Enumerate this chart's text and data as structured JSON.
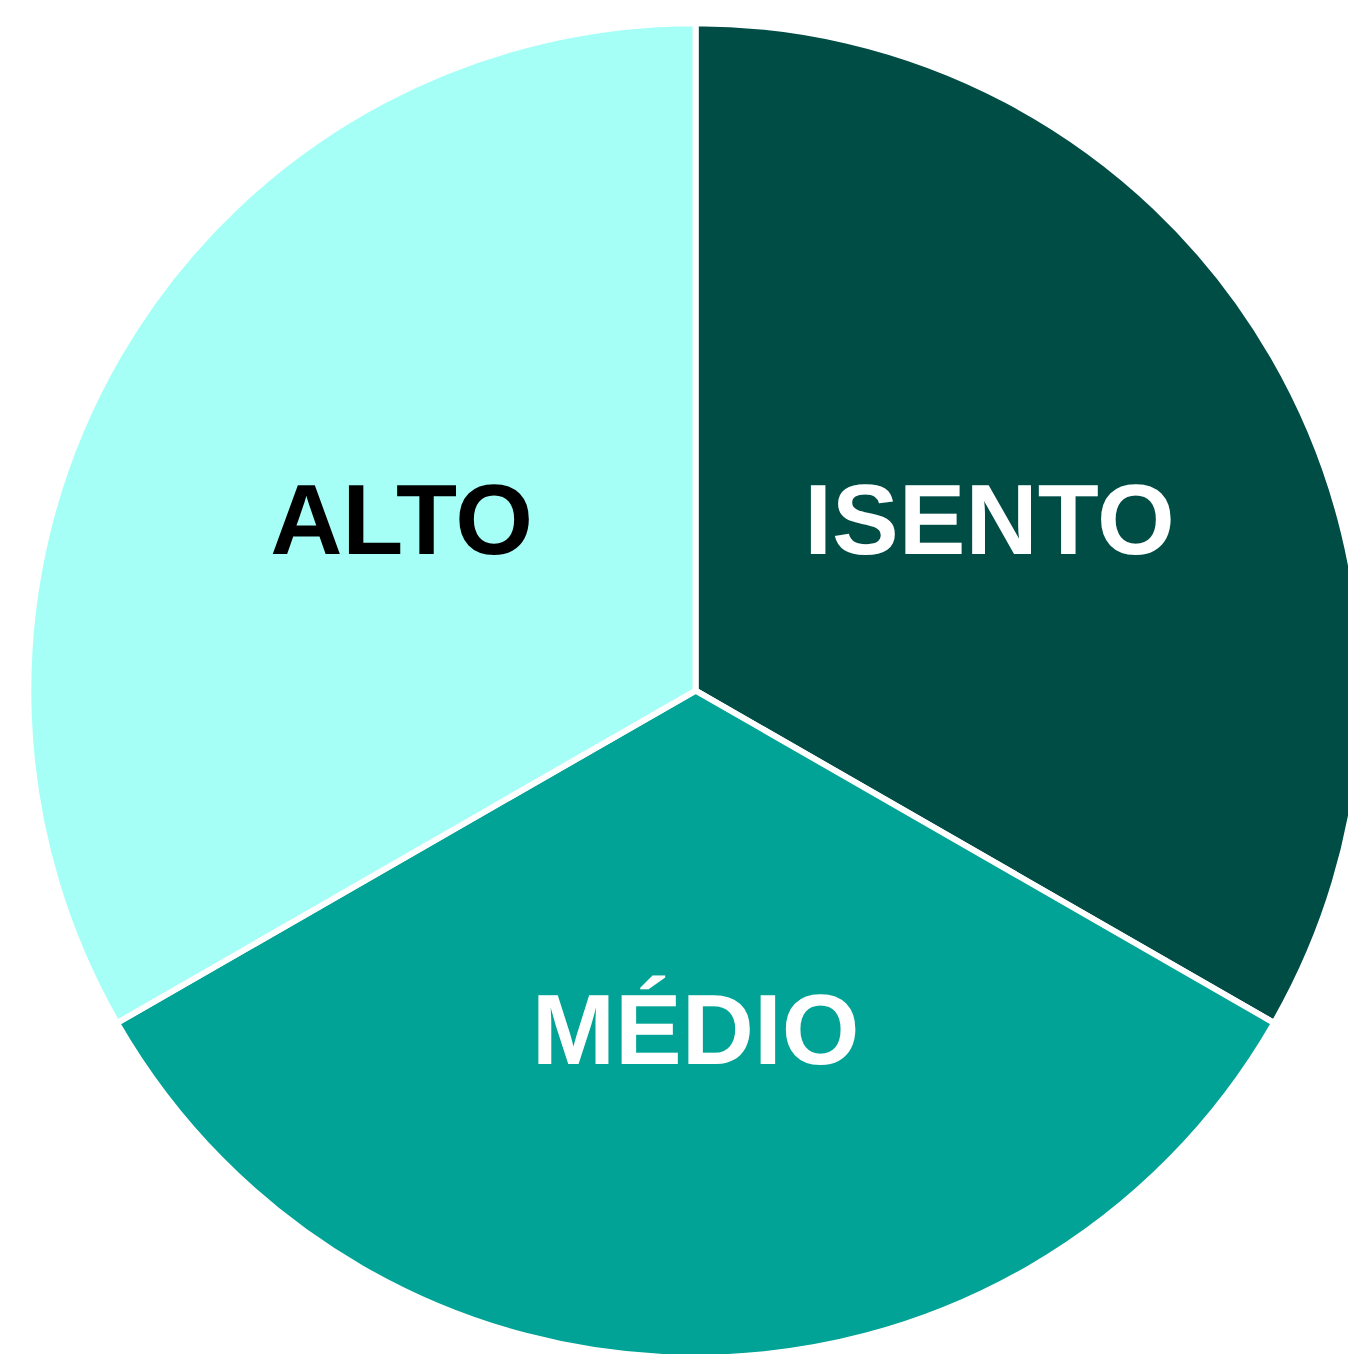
{
  "chart_data": {
    "type": "pie",
    "categories": [
      "ISENTO",
      "MÉDIO",
      "ALTO"
    ],
    "values": [
      33.3,
      33.4,
      33.3
    ],
    "colors": [
      "#004d45",
      "#00a396",
      "#a6fff7"
    ],
    "legend": false
  }
}
